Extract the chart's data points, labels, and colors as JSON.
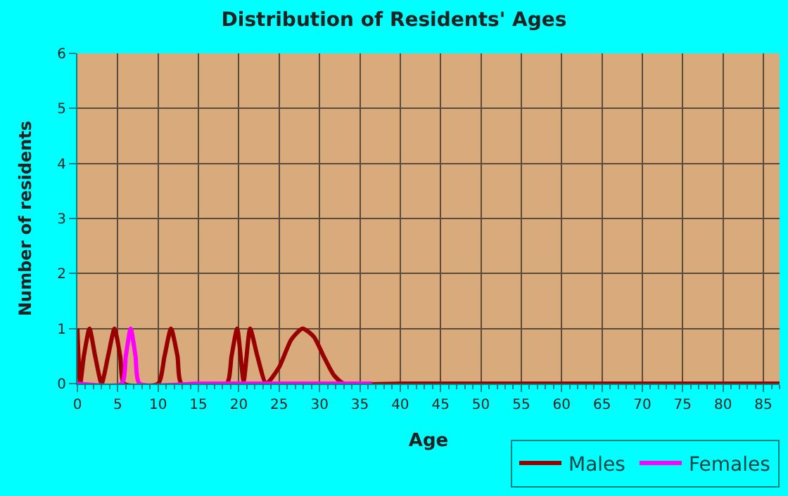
{
  "chart_data": {
    "type": "line",
    "title": "Distribution of Residents' Ages",
    "xlabel": "Age",
    "ylabel": "Number of residents",
    "xlim": [
      0,
      87
    ],
    "xticks": [
      0,
      5,
      10,
      15,
      20,
      25,
      30,
      35,
      40,
      45,
      50,
      55,
      60,
      65,
      70,
      75,
      80,
      85
    ],
    "ylim": [
      0,
      6
    ],
    "yticks": [
      0,
      1,
      2,
      3,
      4,
      5,
      6
    ],
    "grid": true,
    "legend": "bottom right",
    "series": [
      {
        "name": "Males",
        "color": "#990000",
        "x": [
          0,
          0.35,
          0.8,
          1.5,
          2.2,
          3,
          3.8,
          4.6,
          5.3,
          5.8,
          10,
          10.8,
          11.6,
          12.4,
          12.9,
          18.5,
          19.1,
          19.8,
          20.6,
          21.4,
          22.3,
          23.4,
          25,
          26.5,
          27.9,
          29.3,
          30.5,
          31.8,
          33,
          40,
          50,
          60,
          70,
          80,
          87
        ],
        "values": [
          1,
          0,
          0.5,
          1,
          0.5,
          0,
          0.5,
          1,
          0.5,
          0,
          0,
          0.5,
          1,
          0.5,
          0,
          0,
          0.5,
          1,
          0.05,
          1,
          0.5,
          0,
          0.3,
          0.8,
          1,
          0.85,
          0.5,
          0.15,
          0,
          0,
          0,
          0,
          0,
          0,
          0
        ]
      },
      {
        "name": "Females",
        "color": "#ff00ff",
        "x": [
          0,
          5.5,
          6,
          6.6,
          7.2,
          7.7,
          15,
          25,
          36.5
        ],
        "values": [
          0,
          0,
          0.5,
          1,
          0.5,
          0,
          0,
          0,
          0
        ]
      }
    ]
  }
}
